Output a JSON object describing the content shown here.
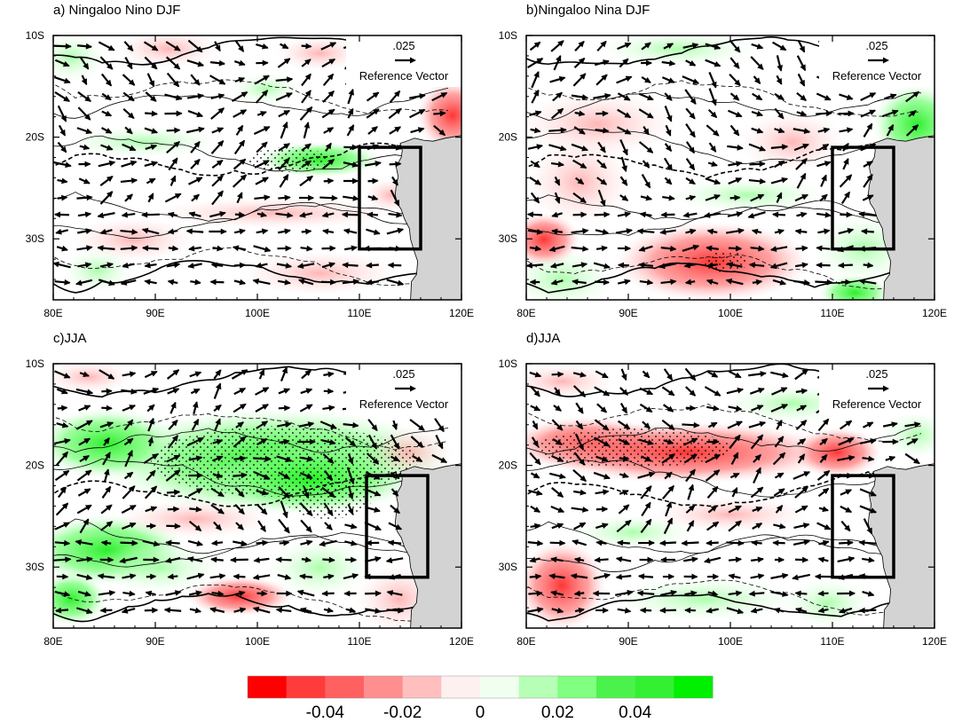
{
  "panels": [
    {
      "id": "a",
      "title": "a) Ningaloo Nino DJF",
      "pattern": "nino"
    },
    {
      "id": "b",
      "title": "b)Ningaloo Nina DJF",
      "pattern": "nina"
    },
    {
      "id": "c",
      "title": "c)JJA",
      "pattern": "jja_pos"
    },
    {
      "id": "d",
      "title": "d)JJA",
      "pattern": "jja_neg"
    }
  ],
  "axes": {
    "lon_ticks": [
      "80E",
      "90E",
      "100E",
      "110E",
      "120E"
    ],
    "lat_ticks": [
      "10S",
      "20S",
      "30S"
    ],
    "lon_range": [
      80,
      120
    ],
    "lat_range": [
      -36,
      -10
    ]
  },
  "reference_vector": {
    "value": ".025",
    "label": "Reference Vector"
  },
  "colorbar": {
    "colors": [
      "#ff0000",
      "#ff3b3b",
      "#ff6060",
      "#ff8f8f",
      "#ffbfbf",
      "#fff0f0",
      "#f0fff0",
      "#b7ffb7",
      "#80ff80",
      "#4cf24c",
      "#33f033",
      "#00f000"
    ],
    "labels": [
      "-0.04",
      "-0.02",
      "0",
      "0.02",
      "0.04"
    ]
  },
  "box_region": {
    "lon": [
      110,
      116
    ],
    "lat": [
      -31,
      -21
    ]
  },
  "colors": {
    "land": "#d3d3d3",
    "frame": "#000000"
  }
}
